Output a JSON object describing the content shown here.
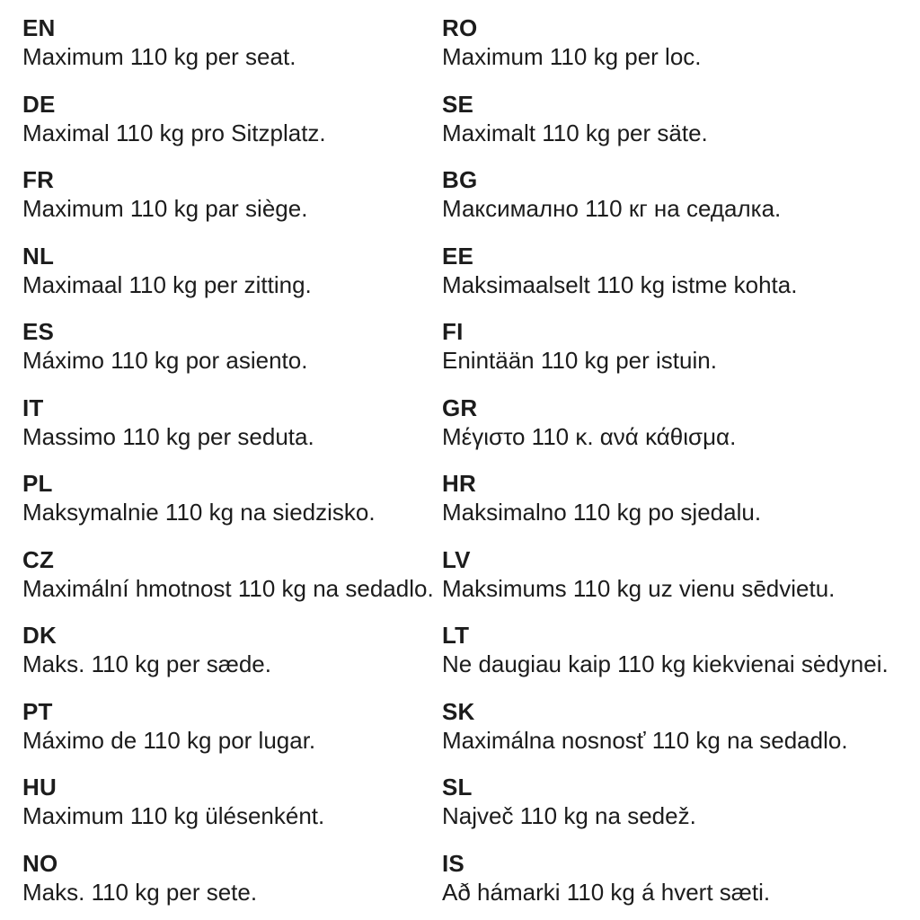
{
  "document": {
    "kind": "multilingual-weight-notice",
    "text_color": "#1c1c1c",
    "background_color": "#ffffff"
  },
  "columns": {
    "left": [
      {
        "code": "EN",
        "text": "Maximum 110 kg per seat."
      },
      {
        "code": "DE",
        "text": "Maximal 110 kg pro Sitzplatz."
      },
      {
        "code": "FR",
        "text": "Maximum 110 kg par siège."
      },
      {
        "code": "NL",
        "text": "Maximaal 110 kg per zitting."
      },
      {
        "code": "ES",
        "text": "Máximo 110 kg por asiento."
      },
      {
        "code": "IT",
        "text": "Massimo 110 kg per seduta."
      },
      {
        "code": "PL",
        "text": "Maksymalnie 110 kg na siedzisko."
      },
      {
        "code": "CZ",
        "text": "Maximální hmotnost 110 kg na sedadlo."
      },
      {
        "code": "DK",
        "text": "Maks. 110 kg per sæde."
      },
      {
        "code": "PT",
        "text": "Máximo de 110 kg por lugar."
      },
      {
        "code": "HU",
        "text": "Maximum 110 kg ülésenként."
      },
      {
        "code": "NO",
        "text": "Maks. 110 kg per sete."
      }
    ],
    "right": [
      {
        "code": "RO",
        "text": "Maximum 110 kg per loc."
      },
      {
        "code": "SE",
        "text": "Maximalt 110 kg per säte."
      },
      {
        "code": "BG",
        "text": "Максимално 110 кг на седалка."
      },
      {
        "code": "EE",
        "text": "Maksimaalselt 110 kg istme kohta."
      },
      {
        "code": "FI",
        "text": "Enintään 110 kg per istuin."
      },
      {
        "code": "GR",
        "text": "Μέγιστο 110 κ. ανά κάθισμα."
      },
      {
        "code": "HR",
        "text": "Maksimalno 110 kg po sjedalu."
      },
      {
        "code": "LV",
        "text": "Maksimums 110 kg uz vienu sēdvietu."
      },
      {
        "code": "LT",
        "text": "Ne daugiau kaip 110 kg kiekvienai sėdynei."
      },
      {
        "code": "SK",
        "text": "Maximálna nosnosť 110 kg na sedadlo."
      },
      {
        "code": "SL",
        "text": "Največ 110 kg na sedež."
      },
      {
        "code": "IS",
        "text": "Að hámarki 110 kg á hvert sæti."
      }
    ]
  }
}
